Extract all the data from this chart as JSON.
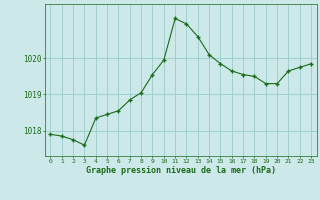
{
  "x": [
    0,
    1,
    2,
    3,
    4,
    5,
    6,
    7,
    8,
    9,
    10,
    11,
    12,
    13,
    14,
    15,
    16,
    17,
    18,
    19,
    20,
    21,
    22,
    23
  ],
  "y": [
    1017.9,
    1017.85,
    1017.75,
    1017.6,
    1018.35,
    1018.45,
    1018.55,
    1018.85,
    1019.05,
    1019.55,
    1019.95,
    1021.1,
    1020.95,
    1020.6,
    1020.1,
    1019.85,
    1019.65,
    1019.55,
    1019.5,
    1019.3,
    1019.3,
    1019.65,
    1019.75,
    1019.85
  ],
  "line_color": "#1a6b1a",
  "marker_color": "#1a6b1a",
  "bg_color": "#cce8e8",
  "grid_color": "#99cccc",
  "xlabel": "Graphe pression niveau de la mer (hPa)",
  "ytick_labels": [
    "1018",
    "1019",
    "1020"
  ],
  "ytick_values": [
    1018,
    1019,
    1020
  ],
  "ylim": [
    1017.3,
    1021.5
  ],
  "xlim": [
    -0.5,
    23.5
  ],
  "xtick_labels": [
    "0",
    "1",
    "2",
    "3",
    "4",
    "5",
    "6",
    "7",
    "8",
    "9",
    "10",
    "11",
    "12",
    "13",
    "14",
    "15",
    "16",
    "17",
    "18",
    "19",
    "20",
    "21",
    "22",
    "23"
  ],
  "font_color": "#1a6b1a"
}
